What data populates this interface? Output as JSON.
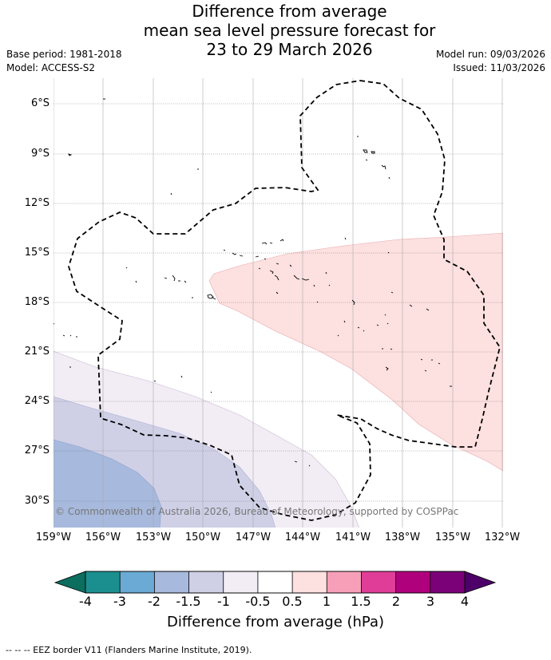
{
  "title_lines": [
    "Difference from average",
    "mean sea level pressure forecast for",
    "23 to 29 March 2026"
  ],
  "meta": {
    "base_period": "Base period: 1981-2018",
    "model": "Model: ACCESS-S2",
    "model_run": "Model run: 09/03/2026",
    "issued": "Issued: 11/03/2026"
  },
  "lat_labels": [
    "6°S",
    "9°S",
    "12°S",
    "15°S",
    "18°S",
    "21°S",
    "24°S",
    "27°S",
    "30°S"
  ],
  "lon_labels": [
    "159°W",
    "156°W",
    "153°W",
    "150°W",
    "147°W",
    "144°W",
    "141°W",
    "138°W",
    "135°W",
    "132°W"
  ],
  "copyright": "© Commonwealth of Australia 2026, Bureau of Meteorology, supported by COSPPac",
  "colorbar": {
    "ticks": [
      "-4",
      "-3",
      "-2",
      "-1.5",
      "-1",
      "-0.5",
      "0.5",
      "1",
      "1.5",
      "2",
      "3",
      "4"
    ],
    "colors": [
      "#1b8f8f",
      "#6aaad4",
      "#a7b9dc",
      "#cfcfe6",
      "#f2ecf5",
      "#ffffff",
      "#fde0e0",
      "#f79fb9",
      "#e03d98",
      "#b0017d",
      "#7a0177"
    ],
    "extend_low": "#0b6e5f",
    "extend_high": "#4c0068",
    "label": "Difference from average (hPa)"
  },
  "footer": "--  --  -- EEZ border V11 (Flanders Marine Institute, 2019).",
  "map_data": {
    "lon_range": [
      -159,
      -132
    ],
    "lat_range": [
      -31.6,
      -4.4
    ],
    "anomaly_fills": [
      {
        "level": "0.5 to 1",
        "color": "#fde0e0"
      },
      {
        "level": "-1 to -0.5",
        "color": "#f2ecf5"
      },
      {
        "level": "-1.5 to -1",
        "color": "#cfcfe6"
      },
      {
        "level": "-2 to -1.5",
        "color": "#a7b9dc"
      }
    ]
  }
}
